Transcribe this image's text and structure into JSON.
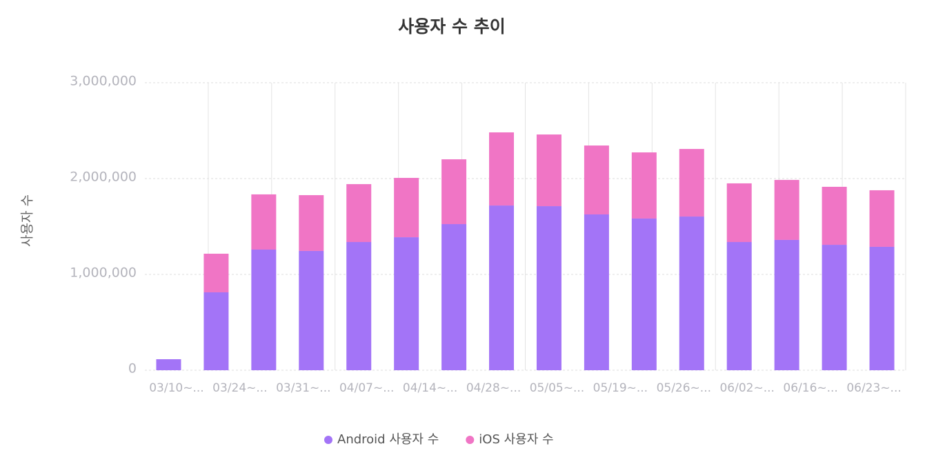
{
  "chart_data": {
    "type": "stacked_bar",
    "title": "사용자 수 추이",
    "y_label": "사용자 수",
    "categories": [
      "03/10~...",
      null,
      "03/24~...",
      "03/31~...",
      "04/07~...",
      "04/14~...",
      null,
      "04/28~...",
      "05/05~...",
      null,
      "05/19~...",
      "05/26~...",
      "06/02~...",
      null,
      "06/16~...",
      "06/23~..."
    ],
    "series": [
      {
        "name": "Android 사용자 수",
        "color": "#a374f7",
        "values": [
          115000,
          813000,
          1259000,
          1245000,
          1338000,
          1388000,
          1525000,
          1719000,
          1712000,
          1626000,
          1583000,
          1604000,
          1338000,
          1360000,
          1309000,
          1288000
        ]
      },
      {
        "name": "iOS 사용자 수",
        "color": "#f075c5",
        "values": [
          0,
          403000,
          576000,
          582000,
          604000,
          619000,
          676000,
          763000,
          748000,
          719000,
          690000,
          705000,
          612000,
          626000,
          605000,
          590000
        ]
      }
    ],
    "ylim": [
      0,
      3000000
    ],
    "yticks": [
      0,
      {
        "value": 1000000,
        "label": "1,000,000"
      },
      {
        "value": 2000000,
        "label": "2,000,000"
      },
      {
        "value": 3000000,
        "label": "3,000,000"
      }
    ],
    "grid": true
  }
}
